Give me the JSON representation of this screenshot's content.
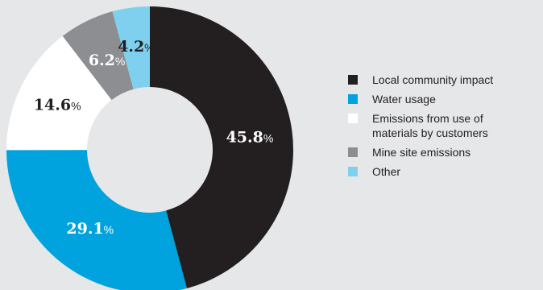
{
  "chart_data": {
    "type": "pie",
    "donut": true,
    "slices": [
      {
        "label": "Local community impact",
        "value": 45.8,
        "display": "45.8",
        "color": "#231f20",
        "text_color": "#ffffff"
      },
      {
        "label": "Water usage",
        "value": 29.1,
        "display": "29.1",
        "color": "#00a3dd",
        "text_color": "#ffffff"
      },
      {
        "label": "Emissions from use of materials by customers",
        "value": 14.6,
        "display": "14.6",
        "color": "#ffffff",
        "text_color": "#231f20"
      },
      {
        "label": "Mine site emissions",
        "value": 6.2,
        "display": "6.2",
        "color": "#8c8e91",
        "text_color": "#ffffff"
      },
      {
        "label": "Other",
        "value": 4.2,
        "display": "4.2",
        "color": "#7fd0ee",
        "text_color": "#231f20"
      }
    ],
    "unit_suffix": "%",
    "legend_position": "right",
    "start": "top, clockwise"
  },
  "legend": {
    "items": [
      {
        "label": "Local community impact",
        "color": "#231f20"
      },
      {
        "label": "Water usage",
        "color": "#00a3dd"
      },
      {
        "label": "Emissions from use of\nmaterials by customers",
        "color": "#ffffff"
      },
      {
        "label": "Mine site emissions",
        "color": "#8c8e91"
      },
      {
        "label": "Other",
        "color": "#7fd0ee"
      }
    ]
  }
}
